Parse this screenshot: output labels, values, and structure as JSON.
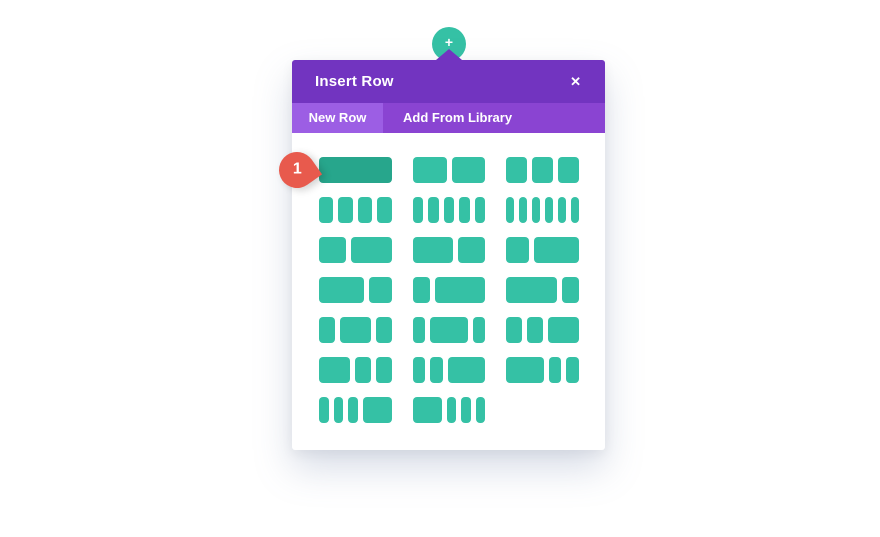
{
  "page": {
    "background": "#ffffff"
  },
  "add_button": {
    "glyph": "+",
    "color": "#35c1a5"
  },
  "modal": {
    "title": "Insert Row",
    "close_glyph": "✕",
    "header_color": "#7234c0",
    "tabbar_color": "#8a44d2",
    "active_tab_color": "#9c5ee4",
    "tabs": [
      {
        "label": "New Row",
        "active": true
      },
      {
        "label": "Add From Library",
        "active": false
      }
    ]
  },
  "annotation": {
    "label": "1",
    "color": "#e85a4d"
  },
  "layouts": {
    "block_color": "#35c1a5",
    "block_color_highlighted": "#27a68c",
    "items": [
      {
        "name": "1",
        "weights": [
          1
        ],
        "highlighted": true
      },
      {
        "name": "1/2 1/2",
        "weights": [
          1,
          1
        ],
        "highlighted": false
      },
      {
        "name": "1/3 1/3 1/3",
        "weights": [
          1,
          1,
          1
        ],
        "highlighted": false
      },
      {
        "name": "1/4 1/4 1/4 1/4",
        "weights": [
          1,
          1,
          1,
          1
        ],
        "highlighted": false
      },
      {
        "name": "1/5 1/5 1/5 1/5 1/5",
        "weights": [
          1,
          1,
          1,
          1,
          1
        ],
        "highlighted": false
      },
      {
        "name": "1/6 1/6 1/6 1/6 1/6 1/6",
        "weights": [
          1,
          1,
          1,
          1,
          1,
          1
        ],
        "highlighted": false
      },
      {
        "name": "2/5 3/5",
        "weights": [
          2,
          3
        ],
        "highlighted": false
      },
      {
        "name": "3/5 2/5",
        "weights": [
          3,
          2
        ],
        "highlighted": false
      },
      {
        "name": "1/3 2/3",
        "weights": [
          1,
          2
        ],
        "highlighted": false
      },
      {
        "name": "2/3 1/3",
        "weights": [
          2,
          1
        ],
        "highlighted": false
      },
      {
        "name": "1/4 3/4",
        "weights": [
          1,
          3
        ],
        "highlighted": false
      },
      {
        "name": "3/4 1/4",
        "weights": [
          3,
          1
        ],
        "highlighted": false
      },
      {
        "name": "1/4 1/2 1/4",
        "weights": [
          1,
          2,
          1
        ],
        "highlighted": false
      },
      {
        "name": "1/5 3/5 1/5",
        "weights": [
          1,
          3,
          1
        ],
        "highlighted": false
      },
      {
        "name": "1/4 1/4 1/2",
        "weights": [
          1,
          1,
          2
        ],
        "highlighted": false
      },
      {
        "name": "1/2 1/4 1/4",
        "weights": [
          2,
          1,
          1
        ],
        "highlighted": false
      },
      {
        "name": "1/5 1/5 3/5",
        "weights": [
          1,
          1,
          3
        ],
        "highlighted": false
      },
      {
        "name": "3/5 1/5 1/5",
        "weights": [
          3,
          1,
          1
        ],
        "highlighted": false
      },
      {
        "name": "1/6 1/6 1/6 1/2",
        "weights": [
          1,
          1,
          1,
          3
        ],
        "highlighted": false
      },
      {
        "name": "1/2 1/6 1/6 1/6",
        "weights": [
          3,
          1,
          1,
          1
        ],
        "highlighted": false
      }
    ]
  }
}
